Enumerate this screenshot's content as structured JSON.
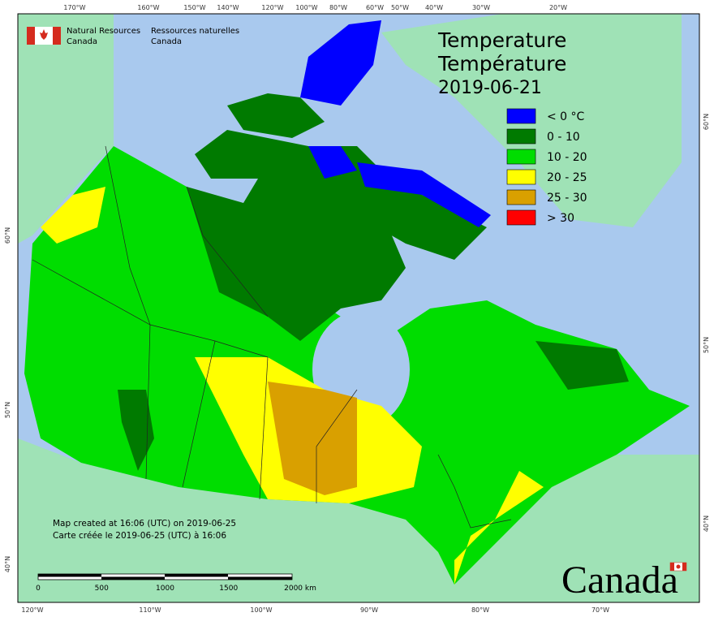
{
  "header": {
    "org_en_1": "Natural Resources",
    "org_en_2": "Canada",
    "org_fr_1": "Ressources naturelles",
    "org_fr_2": "Canada"
  },
  "title": {
    "line1": "Temperature",
    "line2": "Température",
    "date": "2019-06-21"
  },
  "legend": [
    {
      "label": "< 0 °C",
      "color": "#0000ff"
    },
    {
      "label": "0 - 10",
      "color": "#007a00"
    },
    {
      "label": "10 - 20",
      "color": "#00dd00"
    },
    {
      "label": "20 - 25",
      "color": "#ffff00"
    },
    {
      "label": "25 - 30",
      "color": "#d9a000"
    },
    {
      "label": "> 30",
      "color": "#ff0000"
    }
  ],
  "graticule": {
    "top": [
      "170°W",
      "160°W",
      "150°W",
      "140°W",
      "120°W",
      "100°W",
      "80°W",
      "60°W",
      "50°W",
      "40°W",
      "30°W",
      "20°W"
    ],
    "bottom": [
      "120°W",
      "110°W",
      "100°W",
      "90°W",
      "80°W",
      "70°W"
    ],
    "left": [
      "60°N",
      "50°N",
      "40°N"
    ],
    "right": [
      "60°N",
      "50°N",
      "40°N"
    ]
  },
  "footnote": [
    "Map created at 16:06 (UTC) on 2019-06-25",
    "Carte créée le 2019-06-25 (UTC) à 16:06"
  ],
  "scale_bar": [
    "0",
    "500",
    "1000",
    "1500",
    "2000 km"
  ],
  "wordmark": "Canada"
}
